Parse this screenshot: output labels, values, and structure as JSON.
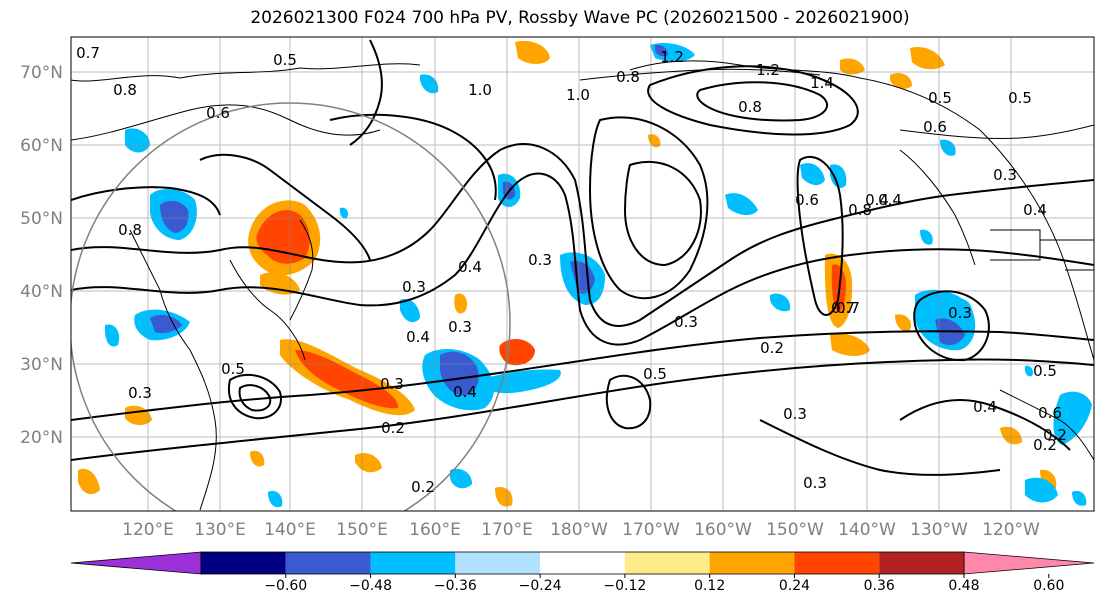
{
  "title": "2026021300 F024 700 hPa PV, Rossby Wave PC (2026021500 - 2026021900)",
  "lat_labels": [
    "70°N",
    "60°N",
    "50°N",
    "40°N",
    "30°N",
    "20°N"
  ],
  "lon_labels": [
    "120°E",
    "130°E",
    "140°E",
    "150°E",
    "160°E",
    "170°E",
    "180°W",
    "170°W",
    "160°W",
    "150°W",
    "140°W",
    "130°W",
    "120°W"
  ],
  "colorbar": {
    "colors": [
      "#9b30d9",
      "#000080",
      "#3a5bcf",
      "#00bfff",
      "#b0e2ff",
      "#ffffff",
      "#ffeb8a",
      "#ffa500",
      "#ff4500",
      "#b22222",
      "#ff88aa"
    ],
    "ticks": [
      "−0.60",
      "−0.48",
      "−0.36",
      "−0.24",
      "−0.12",
      "0.12",
      "0.24",
      "0.36",
      "0.48",
      "0.60"
    ]
  },
  "contour_labels": [
    "0.7",
    "0.8",
    "0.6",
    "0.5",
    "1.0",
    "0.8",
    "1.2",
    "1.0",
    "1.2",
    "1.4",
    "0.8",
    "0.6",
    "0.5",
    "0.5",
    "0.3",
    "0.4",
    "0.8",
    "0.4",
    "0.3",
    "0.4",
    "0.3",
    "0.4",
    "0.3",
    "0.7",
    "0.3",
    "0.2",
    "0.3",
    "0.5",
    "0.4",
    "0.5",
    "0.3",
    "0.2",
    "0.2",
    "0.3",
    "0.4",
    "0.2",
    "0.5",
    "0.6",
    "0.2",
    "0.3",
    "0.7",
    "0.8",
    "0.6",
    "0.4",
    "0.3"
  ]
}
